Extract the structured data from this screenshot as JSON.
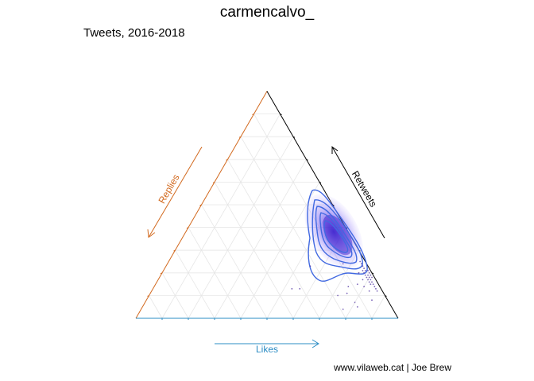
{
  "title": "carmencalvo_",
  "subtitle": "Tweets, 2016-2018",
  "caption": "www.vilaweb.cat | Joe Brew",
  "chart_data": {
    "type": "ternary-scatter-density",
    "axes": {
      "replies": {
        "label": "Replies",
        "color": "#d2691e"
      },
      "retweets": {
        "label": "Retweets",
        "color": "#000000"
      },
      "likes": {
        "label": "Likes",
        "color": "#2b8cc4"
      }
    },
    "grid": true,
    "density_color": "#4b32e0",
    "contour_color": "#4169e1",
    "points": [
      {
        "likes": 0.8,
        "retweets": 0.19,
        "replies": 0.01
      },
      {
        "likes": 0.79,
        "retweets": 0.19,
        "replies": 0.02
      },
      {
        "likes": 0.81,
        "retweets": 0.17,
        "replies": 0.02
      },
      {
        "likes": 0.78,
        "retweets": 0.21,
        "replies": 0.01
      },
      {
        "likes": 0.82,
        "retweets": 0.16,
        "replies": 0.02
      },
      {
        "likes": 0.8,
        "retweets": 0.18,
        "replies": 0.02
      },
      {
        "likes": 0.77,
        "retweets": 0.21,
        "replies": 0.02
      },
      {
        "likes": 0.76,
        "retweets": 0.22,
        "replies": 0.02
      },
      {
        "likes": 0.79,
        "retweets": 0.2,
        "replies": 0.01
      },
      {
        "likes": 0.83,
        "retweets": 0.15,
        "replies": 0.02
      },
      {
        "likes": 0.84,
        "retweets": 0.14,
        "replies": 0.02
      },
      {
        "likes": 0.81,
        "retweets": 0.18,
        "replies": 0.01
      },
      {
        "likes": 0.78,
        "retweets": 0.19,
        "replies": 0.03
      },
      {
        "likes": 0.75,
        "retweets": 0.23,
        "replies": 0.02
      },
      {
        "likes": 0.74,
        "retweets": 0.24,
        "replies": 0.02
      },
      {
        "likes": 0.8,
        "retweets": 0.17,
        "replies": 0.03
      },
      {
        "likes": 0.82,
        "retweets": 0.15,
        "replies": 0.03
      },
      {
        "likes": 0.77,
        "retweets": 0.2,
        "replies": 0.03
      },
      {
        "likes": 0.85,
        "retweets": 0.13,
        "replies": 0.02
      },
      {
        "likes": 0.73,
        "retweets": 0.25,
        "replies": 0.02
      },
      {
        "likes": 0.79,
        "retweets": 0.18,
        "replies": 0.03
      },
      {
        "likes": 0.81,
        "retweets": 0.16,
        "replies": 0.03
      },
      {
        "likes": 0.76,
        "retweets": 0.21,
        "replies": 0.03
      },
      {
        "likes": 0.86,
        "retweets": 0.12,
        "replies": 0.02
      },
      {
        "likes": 0.78,
        "retweets": 0.17,
        "replies": 0.05
      },
      {
        "likes": 0.8,
        "retweets": 0.14,
        "replies": 0.06
      },
      {
        "likes": 0.75,
        "retweets": 0.2,
        "replies": 0.05
      },
      {
        "likes": 0.83,
        "retweets": 0.12,
        "replies": 0.05
      },
      {
        "likes": 0.77,
        "retweets": 0.15,
        "replies": 0.08
      },
      {
        "likes": 0.86,
        "retweets": 0.08,
        "replies": 0.06
      },
      {
        "likes": 0.75,
        "retweets": 0.11,
        "replies": 0.14
      },
      {
        "likes": 0.8,
        "retweets": 0.07,
        "replies": 0.13
      },
      {
        "likes": 0.82,
        "retweets": 0.05,
        "replies": 0.13
      },
      {
        "likes": 0.72,
        "retweets": 0.1,
        "replies": 0.18
      },
      {
        "likes": 0.77,
        "retweets": 0.04,
        "replies": 0.19
      },
      {
        "likes": 0.67,
        "retweets": 0.24,
        "replies": 0.09
      },
      {
        "likes": 0.74,
        "retweets": 0.14,
        "replies": 0.12
      },
      {
        "likes": 0.55,
        "retweets": 0.23,
        "replies": 0.22
      },
      {
        "likes": 0.56,
        "retweets": 0.13,
        "replies": 0.31
      },
      {
        "likes": 0.53,
        "retweets": 0.13,
        "replies": 0.34
      }
    ]
  }
}
